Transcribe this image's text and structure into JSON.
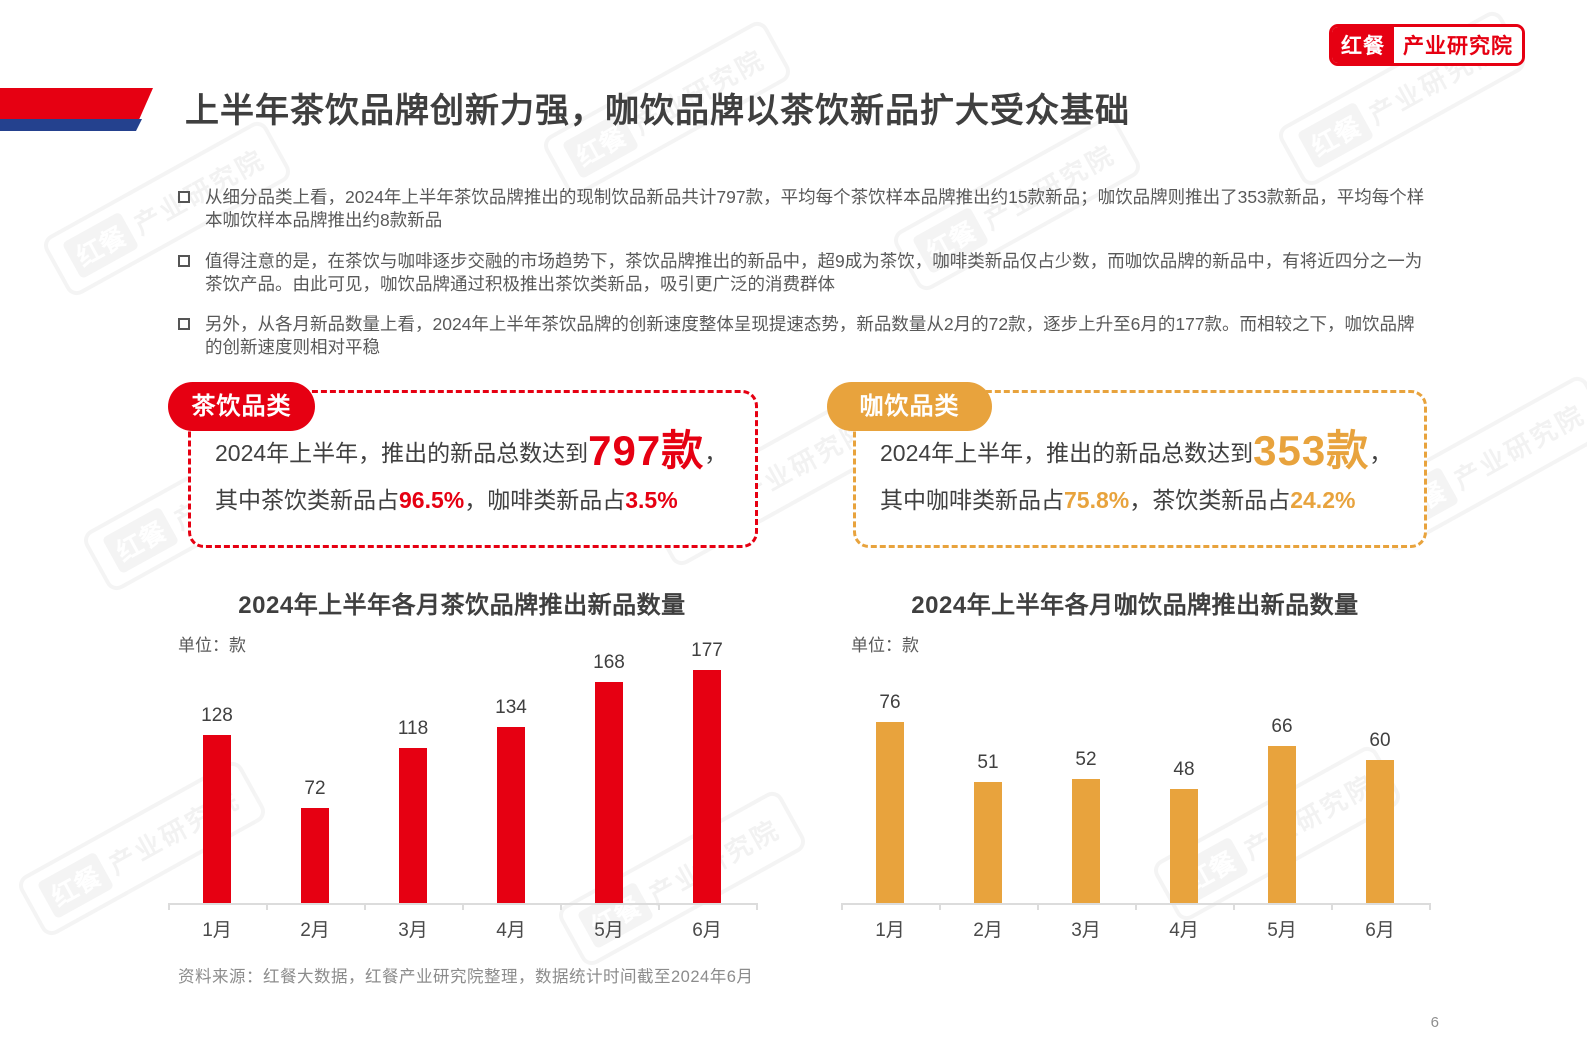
{
  "logo": {
    "brand": "红餐",
    "org": "产业研究院"
  },
  "header": {
    "title": "上半年茶饮品牌创新力强，咖饮品牌以茶饮新品扩大受众基础"
  },
  "bullets": [
    {
      "text": "从细分品类上看，2024年上半年茶饮品牌推出的现制饮品新品共计797款，平均每个茶饮样本品牌推出约15款新品；咖饮品牌则推出了353款新品，平均每个样本咖饮样本品牌推出约8款新品"
    },
    {
      "text": "值得注意的是，在茶饮与咖啡逐步交融的市场趋势下，茶饮品牌推出的新品中，超9成为茶饮，咖啡类新品仅占少数，而咖饮品牌的新品中，有将近四分之一为茶饮产品。由此可见，咖饮品牌通过积极推出茶饮类新品，吸引更广泛的消费群体"
    },
    {
      "text": "另外，从各月新品数量上看，2024年上半年茶饮品牌的创新速度整体呈现提速态势，新品数量从2月的72款，逐步上升至6月的177款。而相较之下，咖饮品牌的创新速度则相对平稳"
    }
  ],
  "callouts": {
    "tea": {
      "badge": "茶饮品类",
      "line1_prefix": "2024年上半年，推出的新品总数达到",
      "highlight_total": "797款",
      "line1_suffix": "，",
      "line2_seg1": "其中茶饮类新品占",
      "line2_pct1": "96.5%",
      "line2_seg2": "，咖啡类新品占",
      "line2_pct2": "3.5%",
      "accent": "#E60012"
    },
    "coffee": {
      "badge": "咖饮品类",
      "line1_prefix": "2024年上半年，推出的新品总数达到",
      "highlight_total": "353款",
      "line1_suffix": "，",
      "line2_seg1": "其中咖啡类新品占",
      "line2_pct1": "75.8%",
      "line2_seg2": "，茶饮类新品占",
      "line2_pct2": "24.2%",
      "accent": "#E8A33D"
    }
  },
  "chart_data": [
    {
      "type": "bar",
      "title": "2024年上半年各月茶饮品牌推出新品数量",
      "unit_label": "单位：款",
      "categories": [
        "1月",
        "2月",
        "3月",
        "4月",
        "5月",
        "6月"
      ],
      "values": [
        128,
        72,
        118,
        134,
        168,
        177
      ],
      "bar_color": "#E60012",
      "xlabel": "",
      "ylabel": "款",
      "ylim": [
        0,
        190
      ],
      "grid": false,
      "legend": "none",
      "data_labels": true
    },
    {
      "type": "bar",
      "title": "2024年上半年各月咖饮品牌推出新品数量",
      "unit_label": "单位：款",
      "categories": [
        "1月",
        "2月",
        "3月",
        "4月",
        "5月",
        "6月"
      ],
      "values": [
        76,
        51,
        52,
        48,
        66,
        60
      ],
      "bar_color": "#E8A33D",
      "xlabel": "",
      "ylabel": "款",
      "ylim": [
        0,
        105
      ],
      "grid": false,
      "legend": "none",
      "data_labels": true
    }
  ],
  "footer": {
    "source": "资料来源：红餐大数据，红餐产业研究院整理，数据统计时间截至2024年6月"
  },
  "page": {
    "number": "6"
  },
  "watermark": {
    "brand": "红餐",
    "org": "产业研究院"
  },
  "colors": {
    "brand_red": "#E60012",
    "brand_gold": "#E8A33D",
    "deco_blue": "#24418E"
  }
}
